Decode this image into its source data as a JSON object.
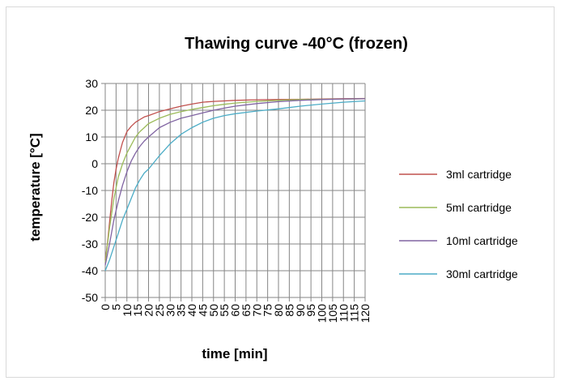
{
  "chart_data": {
    "type": "line",
    "title": "Thawing curve -40°C (frozen)",
    "xlabel": "time [min]",
    "ylabel": "temperature [°C]",
    "xlim": [
      0,
      120
    ],
    "ylim": [
      -50,
      30
    ],
    "x_ticks": [
      "0",
      "5",
      "10",
      "15",
      "20",
      "25",
      "30",
      "35",
      "40",
      "45",
      "50",
      "55",
      "60",
      "65",
      "70",
      "75",
      "80",
      "85",
      "90",
      "95",
      "100",
      "105",
      "110",
      "115",
      "120"
    ],
    "y_ticks": [
      "30",
      "20",
      "10",
      "0",
      "-10",
      "-20",
      "-30",
      "-40",
      "-50"
    ],
    "grid": true,
    "legend_position": "right",
    "series": [
      {
        "name": "3ml cartridge",
        "color": "#c0504d",
        "x": [
          0,
          1,
          2,
          3,
          4,
          5,
          6,
          7,
          8,
          9,
          10,
          12,
          14,
          16,
          18,
          20,
          25,
          30,
          35,
          40,
          45,
          50,
          55,
          60,
          70,
          80,
          90,
          100,
          110,
          120
        ],
        "y": [
          -36,
          -30,
          -22,
          -14,
          -7,
          -2,
          2,
          5,
          8,
          10,
          12,
          14,
          15.5,
          16.5,
          17.5,
          18,
          19.5,
          20.5,
          21.5,
          22.3,
          23,
          23.3,
          23.5,
          23.7,
          23.9,
          24,
          24.1,
          24.2,
          24.3,
          24.4
        ]
      },
      {
        "name": "5ml cartridge",
        "color": "#9bbb59",
        "x": [
          0,
          2,
          4,
          6,
          8,
          10,
          12,
          14,
          16,
          18,
          20,
          25,
          30,
          35,
          40,
          45,
          50,
          55,
          60,
          70,
          80,
          90,
          100,
          110,
          120
        ],
        "y": [
          -37,
          -24,
          -13,
          -5,
          0,
          4,
          7,
          10,
          12,
          13.5,
          15,
          17,
          18.5,
          19.5,
          20.3,
          21,
          21.7,
          22.2,
          22.7,
          23.3,
          23.7,
          24,
          24.1,
          24.2,
          24.3
        ]
      },
      {
        "name": "10ml cartridge",
        "color": "#8064a2",
        "x": [
          0,
          2,
          4,
          6,
          8,
          10,
          12,
          14,
          16,
          18,
          20,
          25,
          30,
          35,
          40,
          45,
          50,
          55,
          60,
          70,
          80,
          90,
          100,
          110,
          120
        ],
        "y": [
          -38,
          -30,
          -21,
          -14,
          -8,
          -3,
          1,
          4,
          6.5,
          8.5,
          10,
          13.5,
          15.5,
          17,
          18,
          19,
          20,
          20.8,
          21.5,
          22.5,
          23.2,
          23.7,
          24,
          24.2,
          24.3
        ]
      },
      {
        "name": "30ml cartridge",
        "color": "#4bacc6",
        "x": [
          0,
          2,
          4,
          6,
          8,
          10,
          12,
          14,
          16,
          18,
          20,
          25,
          30,
          35,
          40,
          45,
          50,
          55,
          60,
          70,
          80,
          90,
          100,
          110,
          120
        ],
        "y": [
          -40,
          -36,
          -31,
          -26,
          -21,
          -17,
          -13,
          -9,
          -6,
          -3.5,
          -2,
          3,
          7.5,
          11,
          13.5,
          15.5,
          17,
          18,
          18.7,
          19.7,
          20.5,
          21.5,
          22.3,
          23,
          23.5
        ]
      }
    ]
  }
}
